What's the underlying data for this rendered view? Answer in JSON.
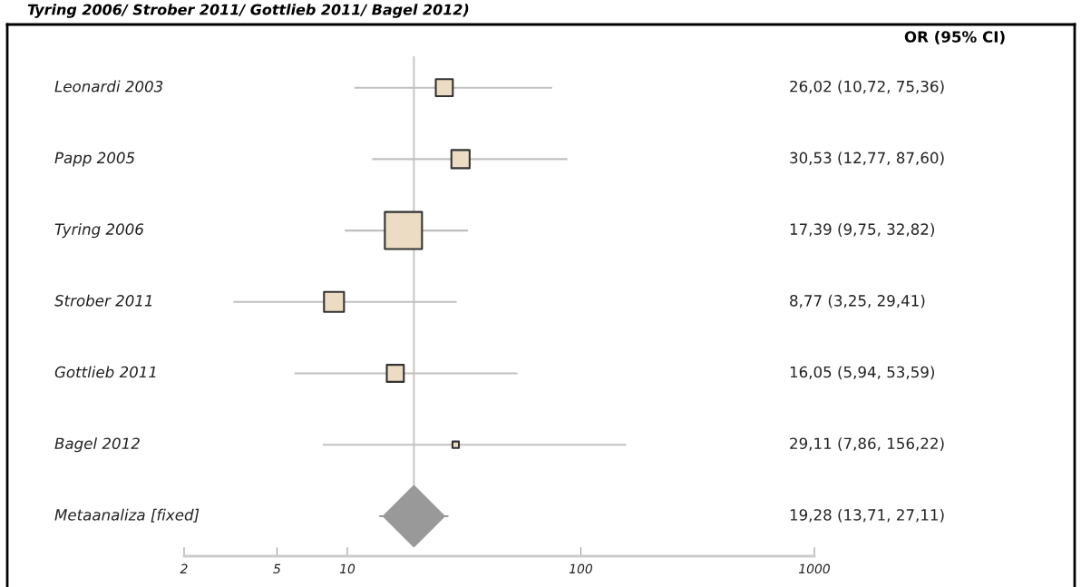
{
  "chart_data": {
    "type": "bubble",
    "orientation": "horizontal",
    "title": "Tyring 2006/ Strober 2011/ Gottlieb 2011/ Bagel 2012)",
    "categories": [
      "Leonardi 2003",
      "Papp 2005",
      "Tyring 2006",
      "Strober 2011",
      "Gottlieb 2011",
      "Bagel 2012",
      "Metaanaliza [fixed]"
    ],
    "series": [
      {
        "marker": "square",
        "color": "#ecdcc4",
        "values": [
          26.02,
          30.53,
          17.39,
          8.77,
          16.05,
          29.11,
          null
        ],
        "errors": [
          [
            10.72,
            75.36
          ],
          [
            12.77,
            87.6
          ],
          [
            9.75,
            32.82
          ],
          [
            3.25,
            29.41
          ],
          [
            5.94,
            53.59
          ],
          [
            7.86,
            156.22
          ],
          null
        ],
        "sizes": [
          0.21,
          0.24,
          1,
          0.29,
          0.21,
          0.03,
          null
        ]
      },
      {
        "type": "scatter",
        "marker": "diamond",
        "color": "#999999",
        "values": [
          null,
          null,
          null,
          null,
          null,
          null,
          19.28
        ],
        "errors": [
          null,
          null,
          null,
          null,
          null,
          null,
          [
            13.71,
            27.11
          ]
        ]
      }
    ],
    "log": "x",
    "xlim": [
      2,
      1000
    ],
    "xticks": [
      2,
      5,
      10,
      100,
      1000
    ],
    "ref_lines": [
      {
        "axis": "x",
        "value": 19.28,
        "color": "#c8c8c8"
      }
    ],
    "annotations": [
      "OR (95% CI)",
      "26,02 (10,72, 75,36)",
      "30,53 (12,77, 87,60)",
      "17,39 (9,75, 32,82)",
      "8,77 (3,25, 29,41)",
      "16,05 (5,94, 53,59)",
      "29,11 (7,86, 156,22)",
      "19,28 (13,71, 27,11)"
    ],
    "grid": false,
    "legend": false
  }
}
